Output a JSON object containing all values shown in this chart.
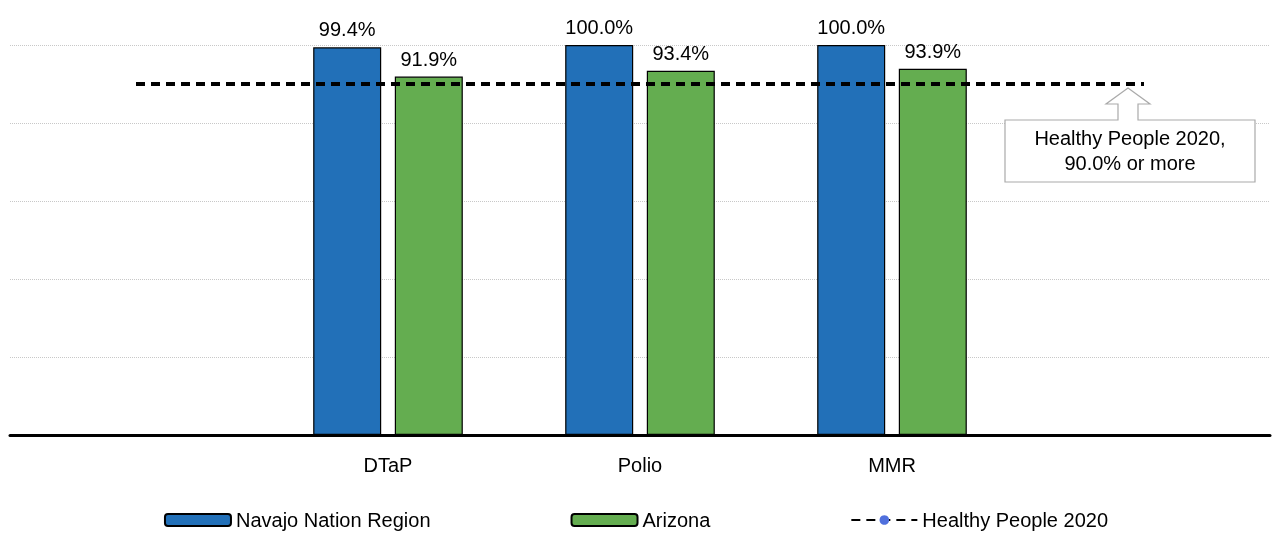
{
  "chart_data": {
    "type": "bar",
    "categories": [
      null,
      "DTaP",
      "Polio",
      "MMR",
      null
    ],
    "series": [
      {
        "name": "Navajo Nation Region",
        "color": "#2270b8",
        "values": [
          null,
          99.4,
          100.0,
          100.0,
          null
        ],
        "value_labels": [
          null,
          "99.4%",
          "100.0%",
          "100.0%",
          null
        ]
      },
      {
        "name": "Arizona",
        "color": "#64ad50",
        "values": [
          null,
          91.9,
          93.4,
          93.9,
          null
        ],
        "value_labels": [
          null,
          "91.9%",
          "93.4%",
          "93.9%",
          null
        ]
      }
    ],
    "ylim": [
      0,
      100
    ],
    "yticks": [
      0,
      20,
      40,
      60,
      80,
      100
    ],
    "tick_labels": "x",
    "grid": "y",
    "legend": "bottom",
    "ref_lines": [
      {
        "axis": "y",
        "value": 90,
        "label": "Healthy People 2020",
        "color": "#000000",
        "line_style": "dashed"
      }
    ],
    "annotations": [
      {
        "text": "Healthy People 2020,\n90.0% or more",
        "y": 90
      }
    ]
  }
}
